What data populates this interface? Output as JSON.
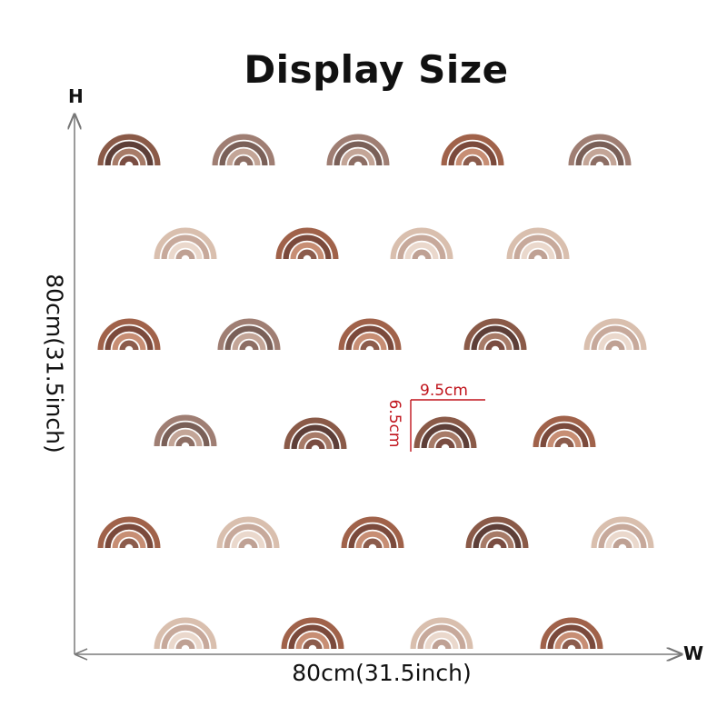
{
  "title": "Display Size",
  "axis": {
    "height_letter": "H",
    "width_letter": "W",
    "width_label": "80cm(31.5inch)",
    "height_label": "80cm(31.5inch)"
  },
  "sample_dimensions": {
    "width": "9.5cm",
    "height": "6.5cm",
    "color": "#c0141c"
  },
  "palettes": {
    "dark": [
      "#8a5a48",
      "#5e3f38",
      "#a77b68",
      "#7a4d42",
      "#b38d7d"
    ],
    "medium": [
      "#9f7e73",
      "#7a6058",
      "#c3a597",
      "#8d6e64",
      "#d8c0b4"
    ],
    "light": [
      "#d9bfae",
      "#c7a99b",
      "#ead8cc",
      "#bfa194",
      "#f0e2d8"
    ],
    "warm": [
      "#a0624a",
      "#7b4a3c",
      "#c78e74",
      "#8c5c4c",
      "#dcb6a2"
    ]
  }
}
